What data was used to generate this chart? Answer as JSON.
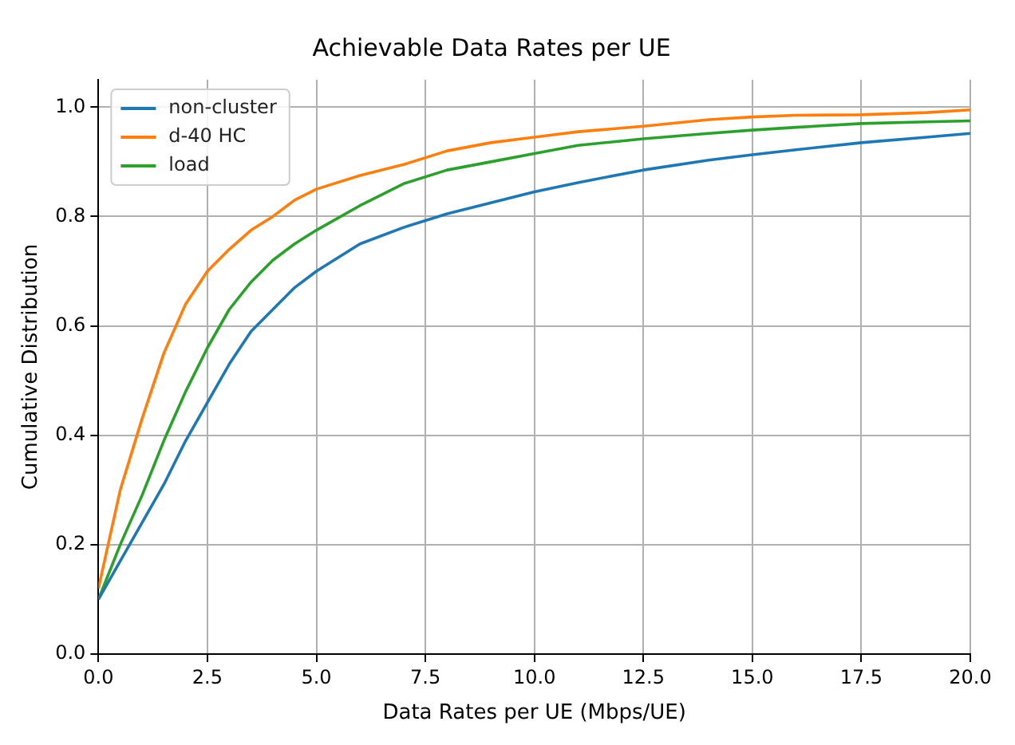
{
  "chart_data": {
    "type": "line",
    "title": "Achievable Data Rates per UE",
    "xlabel": "Data Rates per UE (Mbps/UE)",
    "ylabel": "Cumulative Distribution",
    "x": [
      0,
      0.5,
      1,
      1.5,
      2,
      2.5,
      3,
      3.5,
      4,
      4.5,
      5,
      6,
      7,
      8,
      9,
      10,
      11,
      12.5,
      14,
      15,
      16,
      17.5,
      19,
      20
    ],
    "series": [
      {
        "name": "non-cluster",
        "color": "#1f77b4",
        "values": [
          0.1,
          0.17,
          0.24,
          0.31,
          0.39,
          0.46,
          0.53,
          0.59,
          0.63,
          0.67,
          0.7,
          0.75,
          0.78,
          0.805,
          0.825,
          0.845,
          0.862,
          0.885,
          0.903,
          0.913,
          0.922,
          0.935,
          0.945,
          0.952
        ]
      },
      {
        "name": "d-40 HC",
        "color": "#ff7f0e",
        "values": [
          0.12,
          0.3,
          0.43,
          0.55,
          0.64,
          0.7,
          0.74,
          0.775,
          0.8,
          0.83,
          0.85,
          0.875,
          0.895,
          0.92,
          0.935,
          0.945,
          0.955,
          0.965,
          0.977,
          0.982,
          0.985,
          0.986,
          0.99,
          0.995
        ]
      },
      {
        "name": "load",
        "color": "#2ca02c",
        "values": [
          0.1,
          0.2,
          0.29,
          0.39,
          0.48,
          0.56,
          0.63,
          0.68,
          0.72,
          0.75,
          0.775,
          0.82,
          0.86,
          0.885,
          0.9,
          0.915,
          0.93,
          0.942,
          0.952,
          0.958,
          0.963,
          0.97,
          0.973,
          0.975
        ]
      }
    ],
    "xlim": [
      0,
      20
    ],
    "ylim": [
      0,
      1.05
    ],
    "xticks": [
      {
        "value": 0,
        "label": "0.0"
      },
      {
        "value": 2.5,
        "label": "2.5"
      },
      {
        "value": 5,
        "label": "5.0"
      },
      {
        "value": 7.5,
        "label": "7.5"
      },
      {
        "value": 10,
        "label": "10.0"
      },
      {
        "value": 12.5,
        "label": "12.5"
      },
      {
        "value": 15,
        "label": "15.0"
      },
      {
        "value": 17.5,
        "label": "17.5"
      },
      {
        "value": 20,
        "label": "20.0"
      }
    ],
    "yticks": [
      {
        "value": 0,
        "label": "0.0"
      },
      {
        "value": 0.2,
        "label": "0.2"
      },
      {
        "value": 0.4,
        "label": "0.4"
      },
      {
        "value": 0.6,
        "label": "0.6"
      },
      {
        "value": 0.8,
        "label": "0.8"
      },
      {
        "value": 1,
        "label": "1.0"
      }
    ],
    "grid": true,
    "legend": "top left",
    "marker": "none",
    "line_style": "solid"
  }
}
